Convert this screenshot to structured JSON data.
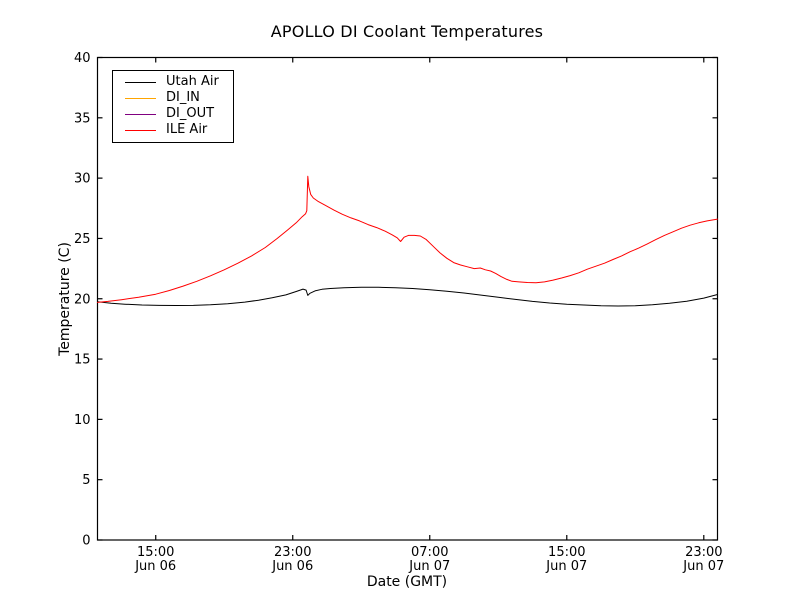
{
  "figure": {
    "background": "#ffffff"
  },
  "chart_data": {
    "type": "line",
    "title": "APOLLO DI Coolant Temperatures",
    "xlabel": "Date (GMT)",
    "ylabel": "Temperature (C)",
    "ylim": [
      0,
      40
    ],
    "xlim_hours": [
      11.6,
      47.8
    ],
    "grid": false,
    "legend_position": "upper-left",
    "axis_color": "#000000",
    "y_ticks": [
      0,
      5,
      10,
      15,
      20,
      25,
      30,
      35,
      40
    ],
    "x_ticks": [
      {
        "hour": 15,
        "time": "15:00",
        "date": "Jun 06"
      },
      {
        "hour": 23,
        "time": "23:00",
        "date": "Jun 06"
      },
      {
        "hour": 31,
        "time": "07:00",
        "date": "Jun 07"
      },
      {
        "hour": 39,
        "time": "15:00",
        "date": "Jun 07"
      },
      {
        "hour": 47,
        "time": "23:00",
        "date": "Jun 07"
      }
    ],
    "series": [
      {
        "name": "Utah Air",
        "color": "#000000",
        "points": [
          [
            11.6,
            19.75
          ],
          [
            12.4,
            19.62
          ],
          [
            13.2,
            19.55
          ],
          [
            14.2,
            19.48
          ],
          [
            15.2,
            19.45
          ],
          [
            16.2,
            19.44
          ],
          [
            17.2,
            19.45
          ],
          [
            18.2,
            19.5
          ],
          [
            19.2,
            19.58
          ],
          [
            20.2,
            19.72
          ],
          [
            21.0,
            19.88
          ],
          [
            21.8,
            20.08
          ],
          [
            22.6,
            20.32
          ],
          [
            23.2,
            20.6
          ],
          [
            23.6,
            20.8
          ],
          [
            23.78,
            20.72
          ],
          [
            23.88,
            20.28
          ],
          [
            24.0,
            20.45
          ],
          [
            24.3,
            20.65
          ],
          [
            24.7,
            20.78
          ],
          [
            25.2,
            20.85
          ],
          [
            26.0,
            20.92
          ],
          [
            27.0,
            20.95
          ],
          [
            28.0,
            20.95
          ],
          [
            29.0,
            20.92
          ],
          [
            30.0,
            20.85
          ],
          [
            31.0,
            20.75
          ],
          [
            32.0,
            20.62
          ],
          [
            33.0,
            20.48
          ],
          [
            34.0,
            20.3
          ],
          [
            35.0,
            20.12
          ],
          [
            36.0,
            19.95
          ],
          [
            37.0,
            19.78
          ],
          [
            38.0,
            19.65
          ],
          [
            39.0,
            19.55
          ],
          [
            40.0,
            19.48
          ],
          [
            41.0,
            19.42
          ],
          [
            42.0,
            19.4
          ],
          [
            43.0,
            19.42
          ],
          [
            44.0,
            19.5
          ],
          [
            45.0,
            19.62
          ],
          [
            46.0,
            19.8
          ],
          [
            47.0,
            20.05
          ],
          [
            47.8,
            20.35
          ]
        ]
      },
      {
        "name": "DI_IN",
        "color": "#ffa500",
        "points": []
      },
      {
        "name": "DI_OUT",
        "color": "#800080",
        "points": []
      },
      {
        "name": "ILE Air",
        "color": "#ff0000",
        "points": [
          [
            11.6,
            19.7
          ],
          [
            12.2,
            19.78
          ],
          [
            13.0,
            19.92
          ],
          [
            14.0,
            20.12
          ],
          [
            15.0,
            20.38
          ],
          [
            15.8,
            20.68
          ],
          [
            16.6,
            21.05
          ],
          [
            17.4,
            21.45
          ],
          [
            18.2,
            21.9
          ],
          [
            19.0,
            22.4
          ],
          [
            19.8,
            22.95
          ],
          [
            20.6,
            23.55
          ],
          [
            21.4,
            24.25
          ],
          [
            22.1,
            25.0
          ],
          [
            22.7,
            25.7
          ],
          [
            23.2,
            26.3
          ],
          [
            23.55,
            26.8
          ],
          [
            23.75,
            27.05
          ],
          [
            23.82,
            27.3
          ],
          [
            23.88,
            30.15
          ],
          [
            23.94,
            29.3
          ],
          [
            24.05,
            28.65
          ],
          [
            24.2,
            28.35
          ],
          [
            24.5,
            28.05
          ],
          [
            24.9,
            27.75
          ],
          [
            25.4,
            27.35
          ],
          [
            25.9,
            27.0
          ],
          [
            26.4,
            26.7
          ],
          [
            26.9,
            26.45
          ],
          [
            27.4,
            26.15
          ],
          [
            27.9,
            25.9
          ],
          [
            28.4,
            25.6
          ],
          [
            28.8,
            25.3
          ],
          [
            29.1,
            25.05
          ],
          [
            29.3,
            24.75
          ],
          [
            29.5,
            25.1
          ],
          [
            29.75,
            25.25
          ],
          [
            30.1,
            25.25
          ],
          [
            30.45,
            25.2
          ],
          [
            30.8,
            24.9
          ],
          [
            31.2,
            24.35
          ],
          [
            31.6,
            23.8
          ],
          [
            32.0,
            23.35
          ],
          [
            32.4,
            23.0
          ],
          [
            32.8,
            22.8
          ],
          [
            33.2,
            22.65
          ],
          [
            33.6,
            22.5
          ],
          [
            33.95,
            22.55
          ],
          [
            34.25,
            22.4
          ],
          [
            34.55,
            22.3
          ],
          [
            34.85,
            22.1
          ],
          [
            35.15,
            21.85
          ],
          [
            35.5,
            21.6
          ],
          [
            35.8,
            21.45
          ],
          [
            36.2,
            21.4
          ],
          [
            36.7,
            21.35
          ],
          [
            37.2,
            21.33
          ],
          [
            37.7,
            21.4
          ],
          [
            38.2,
            21.55
          ],
          [
            38.7,
            21.72
          ],
          [
            39.2,
            21.92
          ],
          [
            39.7,
            22.15
          ],
          [
            40.2,
            22.45
          ],
          [
            40.7,
            22.7
          ],
          [
            41.2,
            22.95
          ],
          [
            41.7,
            23.25
          ],
          [
            42.2,
            23.55
          ],
          [
            42.7,
            23.9
          ],
          [
            43.2,
            24.2
          ],
          [
            43.7,
            24.55
          ],
          [
            44.2,
            24.9
          ],
          [
            44.7,
            25.25
          ],
          [
            45.2,
            25.55
          ],
          [
            45.7,
            25.85
          ],
          [
            46.2,
            26.1
          ],
          [
            46.7,
            26.3
          ],
          [
            47.2,
            26.45
          ],
          [
            47.8,
            26.6
          ]
        ]
      }
    ]
  }
}
